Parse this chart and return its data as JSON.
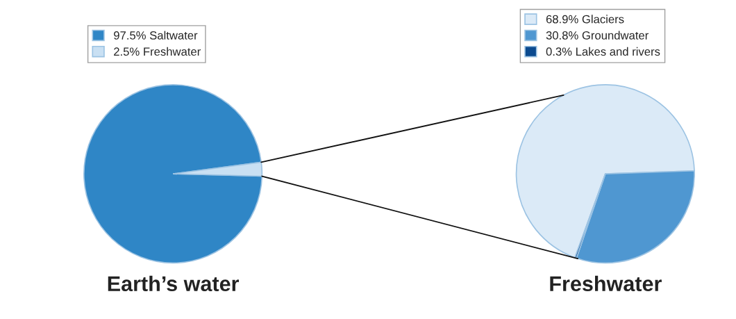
{
  "chart_data": [
    {
      "type": "pie",
      "title": "Earth’s water",
      "categories": [
        "97.5% Saltwater",
        "2.5% Freshwater"
      ],
      "values": [
        97.5,
        2.5
      ],
      "colors": [
        "#2f86c6",
        "#c9e0f3"
      ],
      "legend": "top left"
    },
    {
      "type": "pie",
      "title": "Freshwater",
      "categories": [
        "68.9% Glaciers",
        "30.8% Groundwater",
        "0.3% Lakes and rivers"
      ],
      "values": [
        68.9,
        30.8,
        0.3
      ],
      "colors": [
        "#dbeaf7",
        "#4f97d1",
        "#0b4a8f"
      ],
      "legend": "top left"
    }
  ]
}
